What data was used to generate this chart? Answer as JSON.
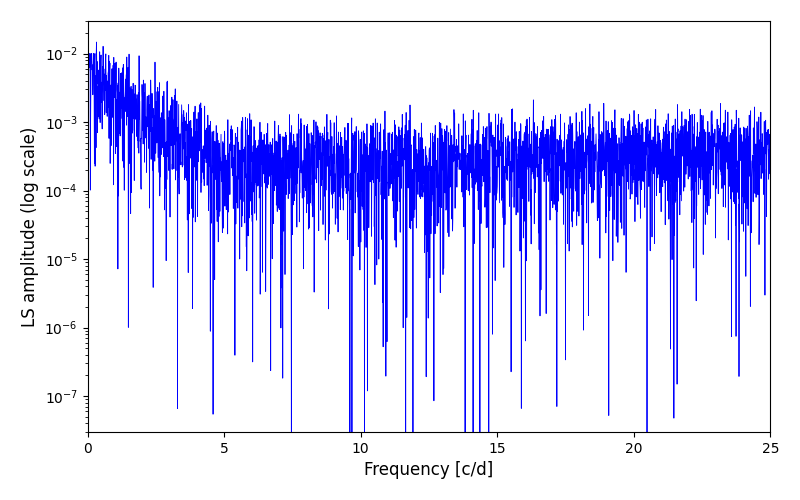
{
  "xlabel": "Frequency [c/d]",
  "ylabel": "LS amplitude (log scale)",
  "line_color": "#0000ff",
  "line_width": 0.6,
  "xlim": [
    0,
    25
  ],
  "ylim": [
    3e-08,
    0.03
  ],
  "figsize": [
    8.0,
    5.0
  ],
  "dpi": 100,
  "n_points": 3000,
  "freq_max": 25.0,
  "seed": 12345
}
